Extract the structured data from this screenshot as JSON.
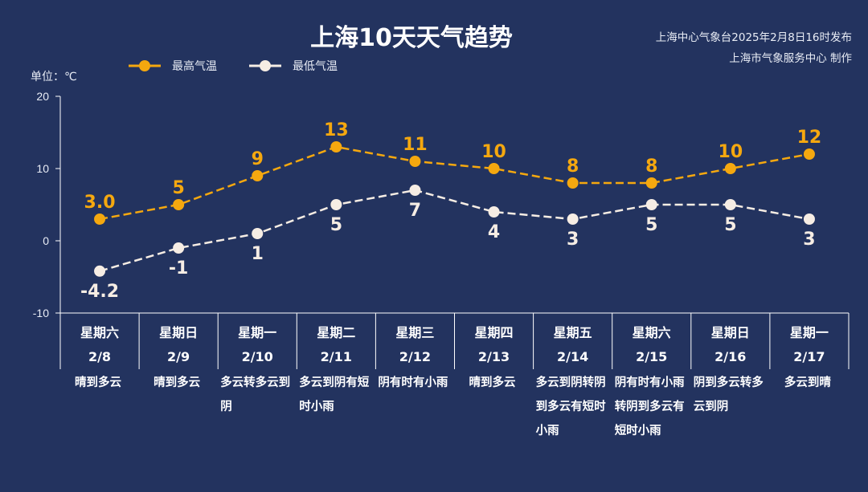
{
  "header": {
    "title": "上海10天天气趋势",
    "source_line1": "上海中心气象台2025年2月8日16时发布",
    "source_line2": "上海市气象服务中心 制作",
    "unit": "单位：℃"
  },
  "colors": {
    "background": "#23335f",
    "high": "#f5a80f",
    "low": "#f6ede4",
    "axis": "#ffffff"
  },
  "chart_data": {
    "type": "line",
    "title": "上海10天天气趋势",
    "ylabel": "单位：℃",
    "ylim": [
      -10,
      20
    ],
    "yticks": [
      "-10",
      "0",
      "10",
      "20"
    ],
    "legend_position": "top-left",
    "categories": [
      {
        "weekday": "星期六",
        "date": "2/8",
        "weather": "晴到多云"
      },
      {
        "weekday": "星期日",
        "date": "2/9",
        "weather": "晴到多云"
      },
      {
        "weekday": "星期一",
        "date": "2/10",
        "weather": "多云转多云到阴"
      },
      {
        "weekday": "星期二",
        "date": "2/11",
        "weather": "多云到阴有短时小雨"
      },
      {
        "weekday": "星期三",
        "date": "2/12",
        "weather": "阴有时有小雨"
      },
      {
        "weekday": "星期四",
        "date": "2/13",
        "weather": "晴到多云"
      },
      {
        "weekday": "星期五",
        "date": "2/14",
        "weather": "多云到阴转阴到多云有短时小雨"
      },
      {
        "weekday": "星期六",
        "date": "2/15",
        "weather": "阴有时有小雨转阴到多云有短时小雨"
      },
      {
        "weekday": "星期日",
        "date": "2/16",
        "weather": "阴到多云转多云到阴"
      },
      {
        "weekday": "星期一",
        "date": "2/17",
        "weather": "多云到晴"
      }
    ],
    "series": [
      {
        "name": "最高气温",
        "values": [
          3.0,
          5,
          9,
          13,
          11,
          10,
          8,
          8,
          10,
          12
        ],
        "labels": [
          "3.0",
          "5",
          "9",
          "13",
          "11",
          "10",
          "8",
          "8",
          "10",
          "12"
        ]
      },
      {
        "name": "最低气温",
        "values": [
          -4.2,
          -1,
          1,
          5,
          7,
          4,
          3,
          5,
          5,
          3
        ],
        "labels": [
          "-4.2",
          "-1",
          "1",
          "5",
          "7",
          "4",
          "3",
          "5",
          "5",
          "3"
        ]
      }
    ]
  }
}
